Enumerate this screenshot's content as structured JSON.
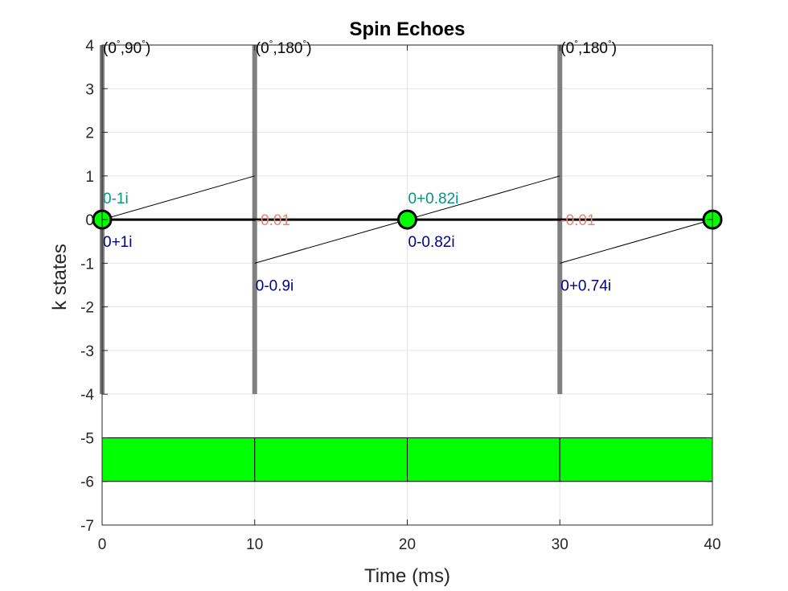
{
  "chart_data": {
    "type": "line",
    "title": "Spin Echoes",
    "xlabel": "Time (ms)",
    "ylabel": "k states",
    "xlim": [
      0,
      40
    ],
    "ylim": [
      -7,
      4
    ],
    "x_ticks": [
      "0",
      "10",
      "20",
      "30",
      "40"
    ],
    "y_ticks": [
      "-7",
      "-6",
      "-5",
      "-4",
      "-3",
      "-2",
      "-1",
      "0",
      "1",
      "2",
      "3",
      "4"
    ],
    "grid": true,
    "pulses": [
      {
        "x": 0,
        "label_a": "(0",
        "label_b": ",90",
        "label_c": ")"
      },
      {
        "x": 10,
        "label_a": "(0",
        "label_b": ",180",
        "label_c": ")"
      },
      {
        "x": 30,
        "label_a": "(0",
        "label_b": ",180",
        "label_c": ")"
      }
    ],
    "pulse_y_range": [
      -4,
      4
    ],
    "degree_symbol": "°",
    "paths": [
      {
        "x": [
          0,
          10
        ],
        "y": [
          0,
          1
        ],
        "style": "thin"
      },
      {
        "x": [
          10,
          20
        ],
        "y": [
          -1,
          0
        ],
        "style": "thin"
      },
      {
        "x": [
          20,
          30
        ],
        "y": [
          0,
          1
        ],
        "style": "thin"
      },
      {
        "x": [
          30,
          40
        ],
        "y": [
          -1,
          0
        ],
        "style": "thin"
      },
      {
        "x": [
          0,
          40
        ],
        "y": [
          0,
          0
        ],
        "style": "thick"
      }
    ],
    "echoes": [
      {
        "x": 0,
        "y": 0
      },
      {
        "x": 20,
        "y": 0
      },
      {
        "x": 40,
        "y": 0
      }
    ],
    "annotations": [
      {
        "text": "0-1i",
        "x": 0,
        "y": 0.5,
        "color": "#009688"
      },
      {
        "text": "0+1i",
        "x": 0,
        "y": -0.5,
        "color": "#00008b"
      },
      {
        "text": "-0.01",
        "x": 10,
        "y": 0,
        "color": "#f08070"
      },
      {
        "text": "0-0.9i",
        "x": 10,
        "y": -1.5,
        "color": "#00008b"
      },
      {
        "text": "0+0.82i",
        "x": 20,
        "y": 0.5,
        "color": "#009688"
      },
      {
        "text": "0-0.82i",
        "x": 20,
        "y": -0.5,
        "color": "#00008b"
      },
      {
        "text": "-0.01",
        "x": 30,
        "y": 0,
        "color": "#f08070"
      },
      {
        "text": "0+0.74i",
        "x": 30,
        "y": -1.5,
        "color": "#00008b"
      }
    ],
    "gradient_blocks": [
      {
        "x": [
          0,
          10
        ],
        "y": [
          -6,
          -5
        ]
      },
      {
        "x": [
          10,
          20
        ],
        "y": [
          -6,
          -5
        ]
      },
      {
        "x": [
          20,
          30
        ],
        "y": [
          -6,
          -5
        ]
      },
      {
        "x": [
          30,
          40
        ],
        "y": [
          -6,
          -5
        ]
      }
    ],
    "colors": {
      "pulse": "#808080",
      "echo_fill": "#00ff00",
      "block_fill": "#00ff00",
      "path": "#000000",
      "grid": "#e6e6e6",
      "axis": "#262626"
    }
  }
}
